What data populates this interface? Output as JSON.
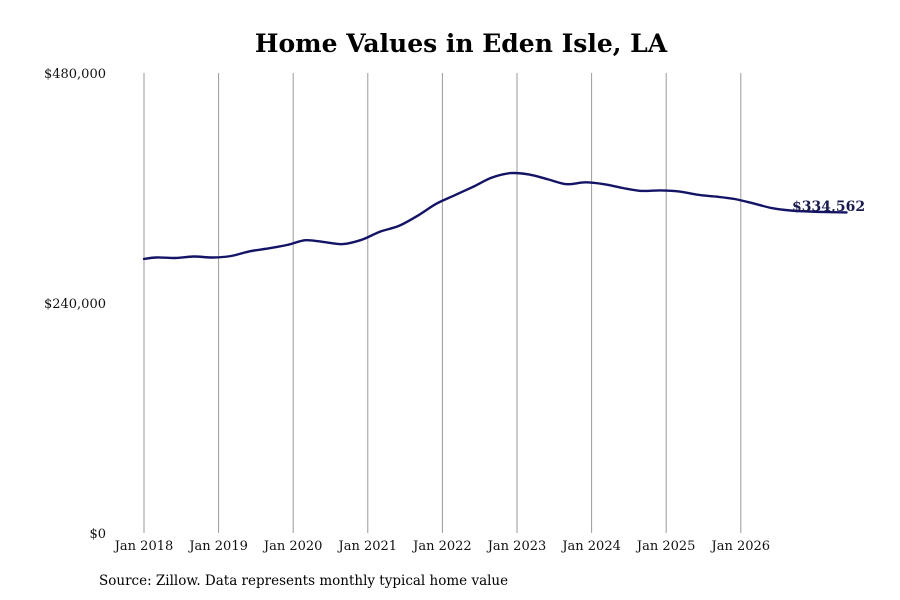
{
  "chart_data": {
    "type": "line",
    "title": "Home Values in Eden Isle, LA",
    "xlabel": "",
    "ylabel": "",
    "ylim": [
      0,
      480000
    ],
    "yticks": [
      {
        "value": 0,
        "label": "$0"
      },
      {
        "value": 240000,
        "label": "$240,000"
      },
      {
        "value": 480000,
        "label": "$480,000"
      }
    ],
    "xticks": [
      {
        "year": 2018,
        "label": "Jan 2018"
      },
      {
        "year": 2019,
        "label": "Jan 2019"
      },
      {
        "year": 2020,
        "label": "Jan 2020"
      },
      {
        "year": 2021,
        "label": "Jan 2021"
      },
      {
        "year": 2022,
        "label": "Jan 2022"
      },
      {
        "year": 2023,
        "label": "Jan 2023"
      },
      {
        "year": 2024,
        "label": "Jan 2024"
      },
      {
        "year": 2025,
        "label": "Jan 2025"
      },
      {
        "year": 2026,
        "label": "Jan 2026"
      }
    ],
    "xlim": [
      2018,
      2026.5
    ],
    "grid": "vertical",
    "series": [
      {
        "color": "#141466",
        "points": [
          {
            "x": "2018-01",
            "y": 286000
          },
          {
            "x": "2018-03",
            "y": 287500
          },
          {
            "x": "2018-06",
            "y": 287000
          },
          {
            "x": "2018-09",
            "y": 288500
          },
          {
            "x": "2018-12",
            "y": 287500
          },
          {
            "x": "2019-03",
            "y": 289000
          },
          {
            "x": "2019-06",
            "y": 294000
          },
          {
            "x": "2019-09",
            "y": 297000
          },
          {
            "x": "2019-12",
            "y": 300500
          },
          {
            "x": "2020-03",
            "y": 305500
          },
          {
            "x": "2020-06",
            "y": 303500
          },
          {
            "x": "2020-09",
            "y": 301500
          },
          {
            "x": "2020-12",
            "y": 306000
          },
          {
            "x": "2021-03",
            "y": 314500
          },
          {
            "x": "2021-06",
            "y": 320500
          },
          {
            "x": "2021-09",
            "y": 331000
          },
          {
            "x": "2021-12",
            "y": 343500
          },
          {
            "x": "2022-03",
            "y": 352500
          },
          {
            "x": "2022-06",
            "y": 361500
          },
          {
            "x": "2022-09",
            "y": 371000
          },
          {
            "x": "2022-12",
            "y": 375500
          },
          {
            "x": "2023-03",
            "y": 374000
          },
          {
            "x": "2023-06",
            "y": 369000
          },
          {
            "x": "2023-09",
            "y": 364000
          },
          {
            "x": "2023-12",
            "y": 366000
          },
          {
            "x": "2024-03",
            "y": 364000
          },
          {
            "x": "2024-06",
            "y": 360000
          },
          {
            "x": "2024-09",
            "y": 357000
          },
          {
            "x": "2024-12",
            "y": 357500
          },
          {
            "x": "2025-03",
            "y": 356500
          },
          {
            "x": "2025-06",
            "y": 353000
          },
          {
            "x": "2025-09",
            "y": 351000
          },
          {
            "x": "2025-12",
            "y": 348500
          },
          {
            "x": "2026-03",
            "y": 344000
          },
          {
            "x": "2026-06",
            "y": 339000
          },
          {
            "x": "2026-09",
            "y": 336500
          },
          {
            "x": "2026-12",
            "y": 335500
          },
          {
            "x": "2027-03",
            "y": 334800
          },
          {
            "x": "2027-06",
            "y": 334562
          }
        ]
      }
    ],
    "end_label": "$334,562"
  },
  "source": "Source: Zillow. Data represents monthly typical home value"
}
